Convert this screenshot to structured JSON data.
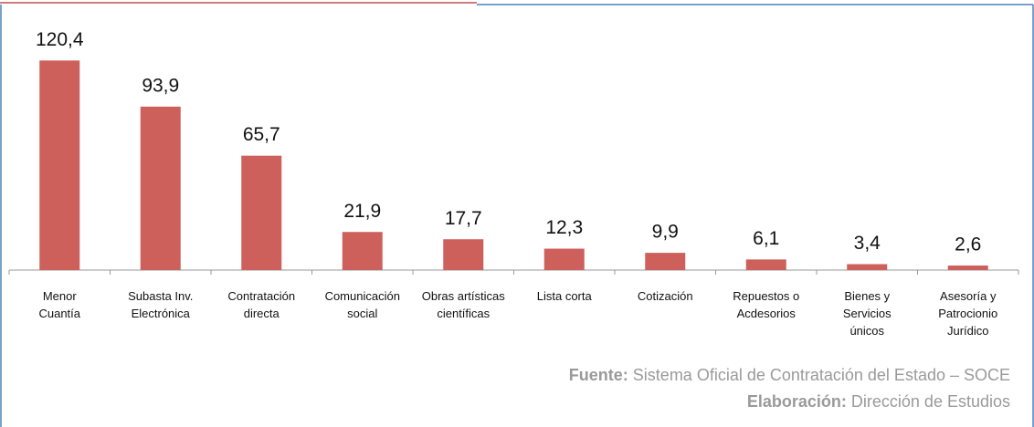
{
  "chart_data": {
    "type": "bar",
    "categories": [
      "Menor\nCuantía",
      "Subasta Inv.\nElectrónica",
      "Contratación\ndirecta",
      "Comunicación\nsocial",
      "Obras artísticas\ncientíficas",
      "Lista corta",
      "Cotización",
      "Repuestos o\nAcdesorios",
      "Bienes y\nServicios\núnicos",
      "Asesoría y\nPatrocionio\nJurídico"
    ],
    "values": [
      120.4,
      93.9,
      65.7,
      21.9,
      17.7,
      12.3,
      9.9,
      6.1,
      3.4,
      2.6
    ],
    "value_labels": [
      "120,4",
      "93,9",
      "65,7",
      "21,9",
      "17,7",
      "12,3",
      "9,9",
      "6,1",
      "3,4",
      "2,6"
    ],
    "color": "#cd605a",
    "ylim": [
      0,
      130
    ]
  },
  "footer": {
    "source_label": "Fuente:",
    "source_text": "Sistema Oficial de Contratación del Estado – SOCE",
    "credit_label": "Elaboración:",
    "credit_text": "Dirección de Estudios"
  }
}
